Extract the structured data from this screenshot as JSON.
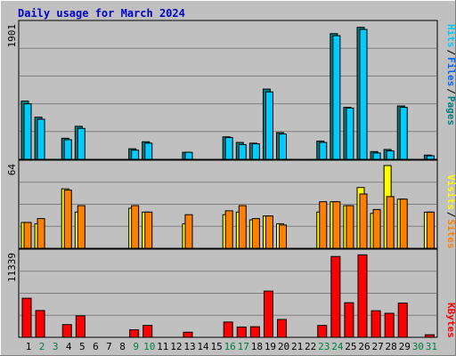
{
  "title": "Daily usage for March 2024",
  "colors": {
    "background": "#c0c0c0",
    "panel": "#c0c0c0",
    "grid": "#808080",
    "title": "#0000cc",
    "hits": "#00ccff",
    "files": "#008080",
    "visits": "#ffff00",
    "sites": "#ff8000",
    "kbytes": "#ff0000",
    "weekday_label": "#000000",
    "weekend_label": "#008040"
  },
  "chart_data": [
    {
      "type": "bar",
      "title": "Daily usage for March 2024",
      "ylabel": "Pages / Files / Hits",
      "ymax_label": "1901",
      "ylim": [
        0,
        1901
      ],
      "grid": true,
      "legend": [
        "Pages",
        "Files",
        "Hits"
      ],
      "categories": [
        "1",
        "2",
        "3",
        "4",
        "5",
        "6",
        "7",
        "8",
        "9",
        "10",
        "11",
        "12",
        "13",
        "14",
        "15",
        "16",
        "17",
        "18",
        "19",
        "20",
        "21",
        "22",
        "23",
        "24",
        "25",
        "26",
        "27",
        "28",
        "29",
        "30",
        "31"
      ],
      "series": [
        {
          "name": "Pages",
          "values": [
            0,
            0,
            0,
            0,
            0,
            0,
            0,
            0,
            0,
            0,
            0,
            0,
            0,
            0,
            0,
            0,
            0,
            0,
            0,
            0,
            0,
            0,
            0,
            0,
            0,
            0,
            0,
            0,
            0,
            0,
            0
          ]
        },
        {
          "name": "Files",
          "values": [
            830,
            600,
            0,
            300,
            470,
            0,
            0,
            0,
            150,
            250,
            0,
            0,
            100,
            0,
            0,
            320,
            240,
            230,
            1000,
            380,
            0,
            0,
            260,
            1790,
            740,
            1880,
            110,
            140,
            760,
            0,
            60
          ]
        },
        {
          "name": "Hits",
          "values": [
            790,
            570,
            0,
            280,
            440,
            0,
            0,
            0,
            130,
            230,
            0,
            0,
            100,
            0,
            0,
            310,
            210,
            220,
            960,
            360,
            0,
            0,
            240,
            1760,
            730,
            1850,
            90,
            120,
            740,
            0,
            50
          ]
        }
      ]
    },
    {
      "type": "bar",
      "ylabel": "Sites / Visits",
      "ymax_label": "64",
      "ylim": [
        0,
        64
      ],
      "grid": true,
      "legend": [
        "Sites",
        "Visits"
      ],
      "categories": [
        "1",
        "2",
        "3",
        "4",
        "5",
        "6",
        "7",
        "8",
        "9",
        "10",
        "11",
        "12",
        "13",
        "14",
        "15",
        "16",
        "17",
        "18",
        "19",
        "20",
        "21",
        "22",
        "23",
        "24",
        "25",
        "26",
        "27",
        "28",
        "29",
        "30",
        "31"
      ],
      "series": [
        {
          "name": "Visits",
          "values": [
            20,
            19,
            0,
            46,
            28,
            0,
            0,
            0,
            31,
            28,
            0,
            0,
            19,
            0,
            0,
            26,
            28,
            22,
            25,
            19,
            0,
            0,
            28,
            36,
            33,
            47,
            27,
            64,
            38,
            0,
            28
          ]
        },
        {
          "name": "Sites",
          "values": [
            20,
            23,
            0,
            45,
            33,
            0,
            0,
            0,
            33,
            28,
            0,
            0,
            26,
            0,
            0,
            29,
            33,
            23,
            25,
            18,
            0,
            0,
            36,
            36,
            33,
            42,
            30,
            40,
            38,
            0,
            28
          ]
        }
      ]
    },
    {
      "type": "bar",
      "ylabel": "KBytes",
      "ymax_label": "11339",
      "ylim": [
        0,
        11339
      ],
      "grid": true,
      "legend": [
        "KBytes"
      ],
      "categories": [
        "1",
        "2",
        "3",
        "4",
        "5",
        "6",
        "7",
        "8",
        "9",
        "10",
        "11",
        "12",
        "13",
        "14",
        "15",
        "16",
        "17",
        "18",
        "19",
        "20",
        "21",
        "22",
        "23",
        "24",
        "25",
        "26",
        "27",
        "28",
        "29",
        "30",
        "31"
      ],
      "series": [
        {
          "name": "KBytes",
          "values": [
            5350,
            3670,
            0,
            1740,
            2940,
            0,
            0,
            0,
            1030,
            1630,
            0,
            0,
            700,
            0,
            0,
            2090,
            1410,
            1450,
            6330,
            2440,
            0,
            0,
            1630,
            11070,
            4740,
            11300,
            3640,
            3290,
            4690,
            0,
            350
          ]
        }
      ]
    }
  ],
  "x_axis": {
    "days": [
      "1",
      "2",
      "3",
      "4",
      "5",
      "6",
      "7",
      "8",
      "9",
      "10",
      "11",
      "12",
      "13",
      "14",
      "15",
      "16",
      "17",
      "18",
      "19",
      "20",
      "21",
      "22",
      "23",
      "24",
      "25",
      "26",
      "27",
      "28",
      "29",
      "30",
      "31"
    ],
    "weekend_days": [
      "2",
      "3",
      "9",
      "10",
      "16",
      "17",
      "23",
      "24",
      "30",
      "31"
    ]
  }
}
